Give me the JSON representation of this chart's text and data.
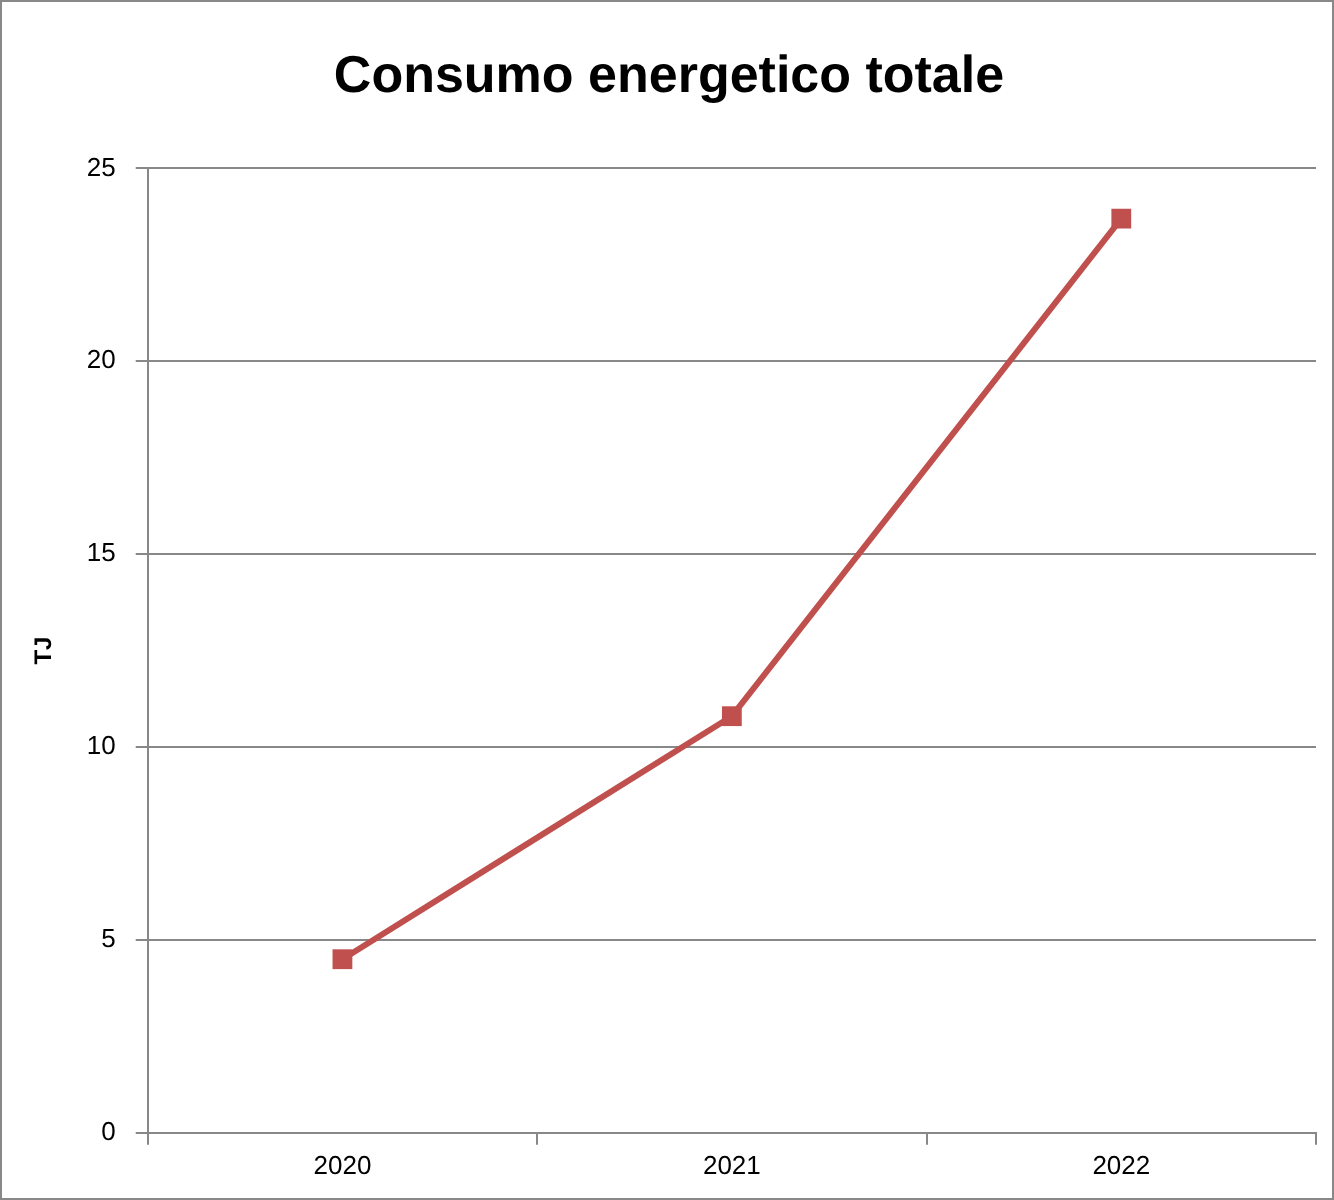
{
  "chart_data": {
    "type": "line",
    "title": "Consumo energetico totale",
    "ylabel": "TJ",
    "categories": [
      "2020",
      "2021",
      "2022"
    ],
    "series": [
      {
        "color": "#c0504d",
        "values": [
          4.5,
          10.8,
          23.7
        ]
      }
    ],
    "ylim": [
      0,
      25
    ],
    "yticks": [
      0,
      5,
      10,
      15,
      20,
      25
    ],
    "grid": "y",
    "legend": false,
    "marker": "square",
    "line_style": "solid"
  }
}
